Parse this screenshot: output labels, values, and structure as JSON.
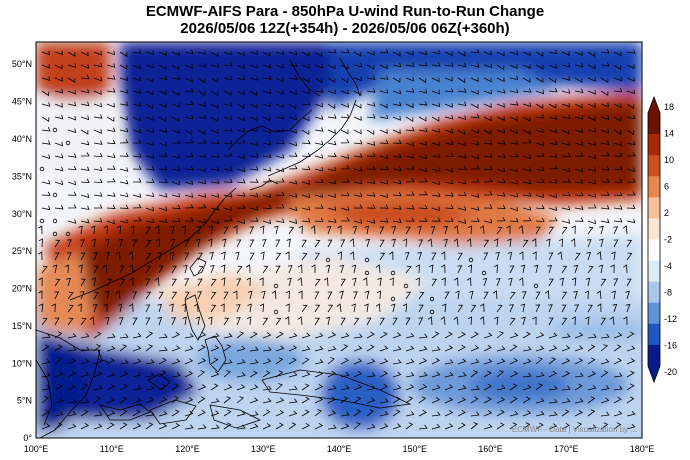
{
  "title": {
    "line1": "ECMWF-AIFS Para  - 850hPa U-wind Run-to-Run Change",
    "line2": "2026/05/06 12Z(+354h) - 2026/05/06 06Z(+360h)"
  },
  "watermark": "ECMWF - Data | Visualization by ...",
  "map": {
    "lon_range": [
      100,
      180
    ],
    "lat_range": [
      0,
      53
    ],
    "lon_ticks": [
      "100°E",
      "110°E",
      "120°E",
      "130°E",
      "140°E",
      "150°E",
      "160°E",
      "170°E",
      "180°E"
    ],
    "lat_ticks": [
      "0°",
      "5°N",
      "10°N",
      "15°N",
      "20°N",
      "25°N",
      "30°N",
      "35°N",
      "40°N",
      "45°N",
      "50°N"
    ]
  },
  "colorbar": {
    "labels": [
      "18",
      "14",
      "10",
      "6",
      "2",
      "-2",
      "-4",
      "-8",
      "-12",
      "-16",
      "-20"
    ],
    "range": [
      -20,
      20
    ],
    "colors": [
      "#6b1200",
      "#a62a06",
      "#cf4f1e",
      "#e6874e",
      "#f5c09a",
      "#fbe6d4",
      "#ffffff",
      "#dce9f7",
      "#a9c7ea",
      "#5f94d6",
      "#1f56c0",
      "#061a8c"
    ]
  }
}
